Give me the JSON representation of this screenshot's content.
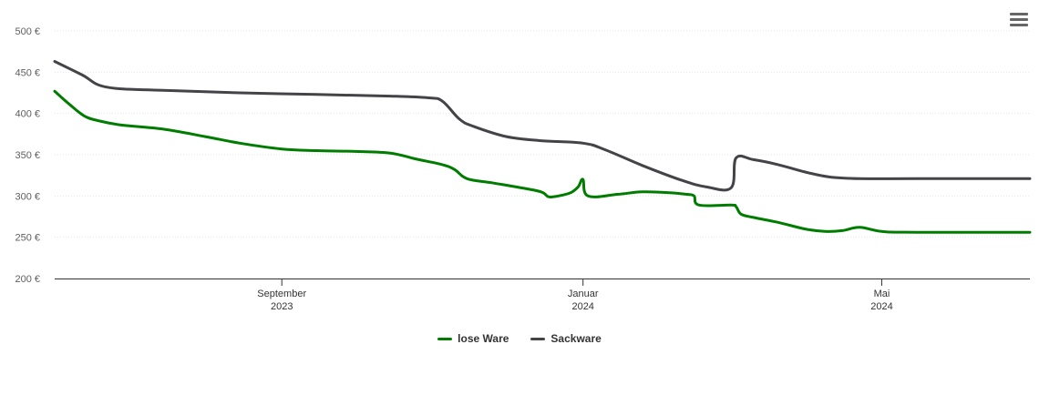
{
  "chart_data": {
    "type": "line",
    "x_type": "date",
    "xlim": [
      "2023-06-01",
      "2024-06-30"
    ],
    "ylim": [
      200,
      500
    ],
    "yticks": [
      200,
      250,
      300,
      350,
      400,
      450,
      500
    ],
    "ytick_labels": [
      "200 €",
      "250 €",
      "300 €",
      "350 €",
      "400 €",
      "450 €",
      "500 €"
    ],
    "xticks": [
      {
        "date": "2023-09-01",
        "line1": "September",
        "line2": "2023"
      },
      {
        "date": "2024-01-01",
        "line1": "Januar",
        "line2": "2024"
      },
      {
        "date": "2024-05-01",
        "line1": "Mai",
        "line2": "2024"
      }
    ],
    "grid": true,
    "legend_position": "bottom-center",
    "series": [
      {
        "name": "lose Ware",
        "color": "#007d00",
        "points": [
          [
            "2023-06-01",
            427
          ],
          [
            "2023-06-07",
            411
          ],
          [
            "2023-06-13",
            397
          ],
          [
            "2023-06-19",
            391
          ],
          [
            "2023-06-28",
            386
          ],
          [
            "2023-07-15",
            381
          ],
          [
            "2023-08-01",
            372
          ],
          [
            "2023-08-15",
            364
          ],
          [
            "2023-09-01",
            357
          ],
          [
            "2023-09-15",
            355
          ],
          [
            "2023-10-01",
            354
          ],
          [
            "2023-10-15",
            352
          ],
          [
            "2023-10-25",
            345
          ],
          [
            "2023-11-05",
            338
          ],
          [
            "2023-11-10",
            332
          ],
          [
            "2023-11-15",
            321
          ],
          [
            "2023-11-25",
            316
          ],
          [
            "2023-12-05",
            311
          ],
          [
            "2023-12-15",
            305
          ],
          [
            "2023-12-18",
            299
          ],
          [
            "2023-12-22",
            300
          ],
          [
            "2023-12-27",
            304
          ],
          [
            "2023-12-30",
            311
          ],
          [
            "2024-01-01",
            320
          ],
          [
            "2024-01-03",
            300
          ],
          [
            "2024-01-15",
            302
          ],
          [
            "2024-01-25",
            305
          ],
          [
            "2024-02-05",
            304
          ],
          [
            "2024-02-12",
            302
          ],
          [
            "2024-02-15",
            300
          ],
          [
            "2024-02-17",
            289
          ],
          [
            "2024-03-01",
            289
          ],
          [
            "2024-03-03",
            287
          ],
          [
            "2024-03-05",
            278
          ],
          [
            "2024-03-10",
            274
          ],
          [
            "2024-03-20",
            268
          ],
          [
            "2024-03-31",
            260
          ],
          [
            "2024-04-08",
            257
          ],
          [
            "2024-04-15",
            258
          ],
          [
            "2024-04-22",
            262
          ],
          [
            "2024-05-01",
            257
          ],
          [
            "2024-05-15",
            256
          ],
          [
            "2024-06-30",
            256
          ]
        ]
      },
      {
        "name": "Sackware",
        "color": "#434348",
        "points": [
          [
            "2023-06-01",
            463
          ],
          [
            "2023-06-12",
            447
          ],
          [
            "2023-06-22",
            432
          ],
          [
            "2023-07-15",
            428
          ],
          [
            "2023-08-15",
            425
          ],
          [
            "2023-09-15",
            423
          ],
          [
            "2023-10-15",
            421
          ],
          [
            "2023-10-30",
            419
          ],
          [
            "2023-11-05",
            415
          ],
          [
            "2023-11-12",
            393
          ],
          [
            "2023-11-18",
            384
          ],
          [
            "2023-12-01",
            372
          ],
          [
            "2023-12-15",
            367
          ],
          [
            "2024-01-01",
            364
          ],
          [
            "2024-01-10",
            356
          ],
          [
            "2024-01-25",
            337
          ],
          [
            "2024-02-10",
            319
          ],
          [
            "2024-02-20",
            311
          ],
          [
            "2024-03-01",
            310
          ],
          [
            "2024-03-03",
            346
          ],
          [
            "2024-03-10",
            344
          ],
          [
            "2024-03-20",
            338
          ],
          [
            "2024-03-31",
            329
          ],
          [
            "2024-04-10",
            323
          ],
          [
            "2024-04-22",
            321
          ],
          [
            "2024-05-15",
            321
          ],
          [
            "2024-06-30",
            321
          ]
        ]
      }
    ]
  },
  "menu": {
    "icon": "hamburger-menu-icon"
  }
}
